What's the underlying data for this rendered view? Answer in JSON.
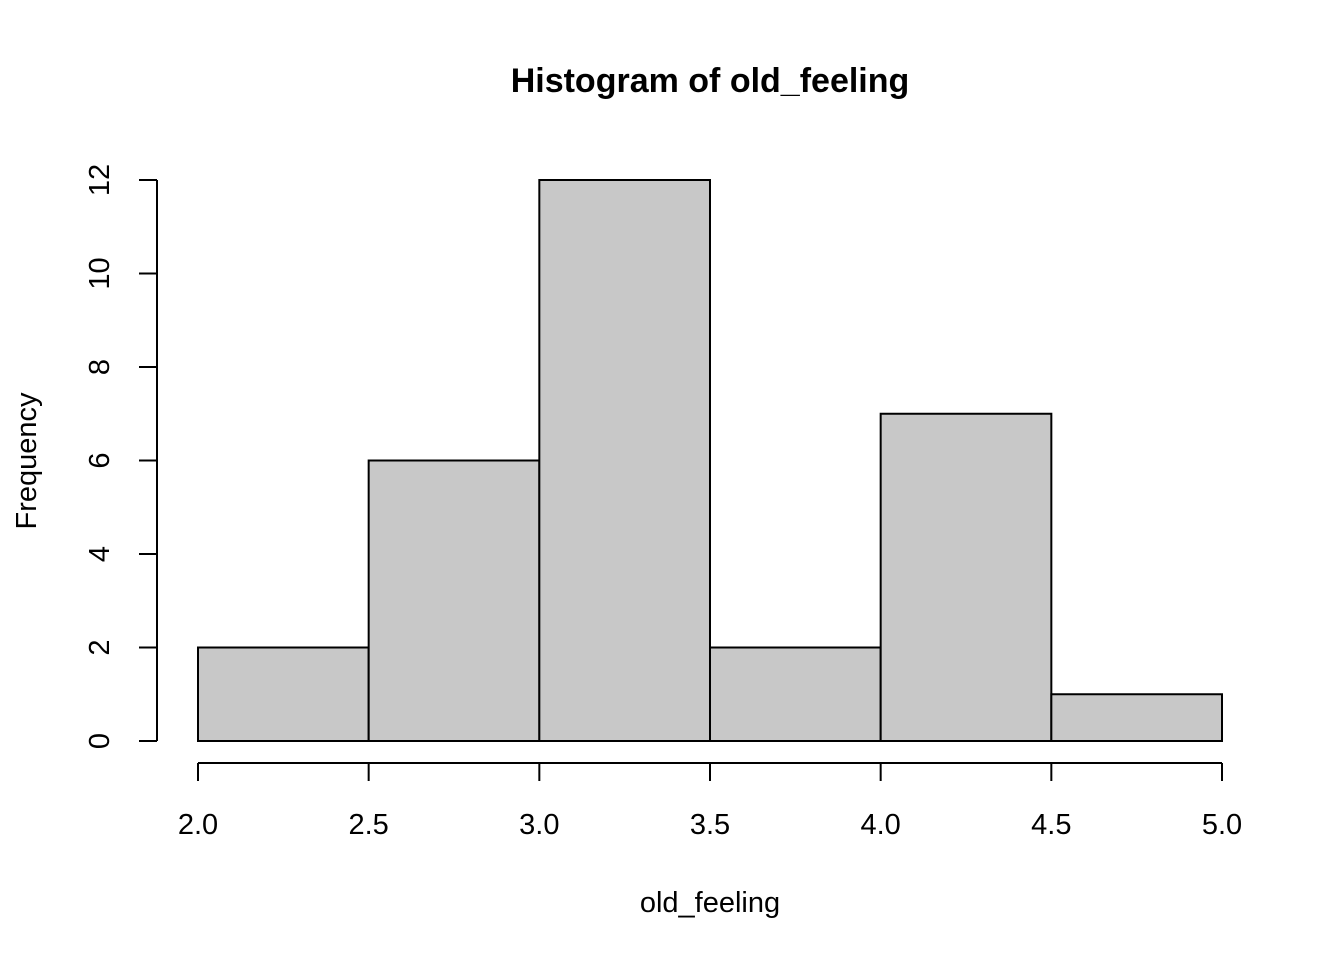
{
  "chart_data": {
    "type": "bar",
    "title": "Histogram of old_feeling",
    "xlabel": "old_feeling",
    "ylabel": "Frequency",
    "bins": [
      {
        "start": 2.0,
        "end": 2.5,
        "count": 2
      },
      {
        "start": 2.5,
        "end": 3.0,
        "count": 6
      },
      {
        "start": 3.0,
        "end": 3.5,
        "count": 12
      },
      {
        "start": 3.5,
        "end": 4.0,
        "count": 2
      },
      {
        "start": 4.0,
        "end": 4.5,
        "count": 7
      },
      {
        "start": 4.5,
        "end": 5.0,
        "count": 1
      }
    ],
    "xlim": [
      2.0,
      5.0
    ],
    "ylim": [
      0,
      12
    ],
    "x_ticks": [
      "2.0",
      "2.5",
      "3.0",
      "3.5",
      "4.0",
      "4.5",
      "5.0"
    ],
    "y_ticks": [
      "0",
      "2",
      "4",
      "6",
      "8",
      "10",
      "12"
    ],
    "bar_color": "#c8c8c8",
    "grid": false
  }
}
